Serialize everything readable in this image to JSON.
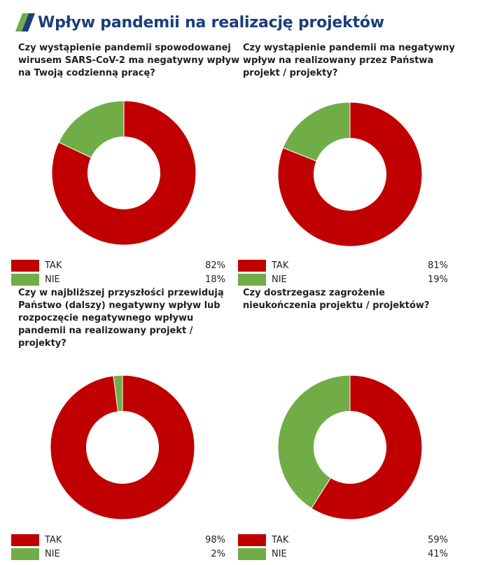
{
  "page": {
    "title": "Wpływ pandemii na realizację projektów",
    "logo_icon": "stripes-logo-icon"
  },
  "colors": {
    "tak": "#c00000",
    "nie": "#70ad47",
    "title": "#1a3f7a"
  },
  "legend_labels": {
    "tak": "TAK",
    "nie": "NIE"
  },
  "chart_data": [
    {
      "type": "pie",
      "title": "Czy wystąpienie pandemii spowodowanej wirusem SARS-CoV-2 ma negatywny wpływ na Twoją codzienną pracę?",
      "categories": [
        "TAK",
        "NIE"
      ],
      "values": [
        82,
        18
      ],
      "value_labels": [
        "82%",
        "18%"
      ],
      "legend_placement": "bottom"
    },
    {
      "type": "pie",
      "title": "Czy wystąpienie pandemii ma negatywny wpływ na realizowany przez Państwa projekt / projekty?",
      "categories": [
        "TAK",
        "NIE"
      ],
      "values": [
        81,
        19
      ],
      "value_labels": [
        "81%",
        "19%"
      ],
      "legend_placement": "bottom"
    },
    {
      "type": "pie",
      "title": "Czy w najbliższej przyszłości przewidują Państwo (dalszy) negatywny wpływ lub rozpoczęcie negatywnego wpływu pandemii na realizowany projekt / projekty?",
      "categories": [
        "TAK",
        "NIE"
      ],
      "values": [
        98,
        2
      ],
      "value_labels": [
        "98%",
        "2%"
      ],
      "legend_placement": "bottom"
    },
    {
      "type": "pie",
      "title": "Czy dostrzegasz zagrożenie nieukończenia projektu / projektów?",
      "categories": [
        "TAK",
        "NIE"
      ],
      "values": [
        59,
        41
      ],
      "value_labels": [
        "59%",
        "41%"
      ],
      "legend_placement": "bottom"
    }
  ]
}
